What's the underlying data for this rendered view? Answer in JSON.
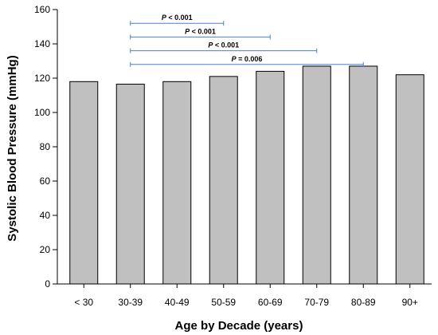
{
  "chart_data": {
    "type": "bar",
    "categories": [
      "< 30",
      "30-39",
      "40-49",
      "50-59",
      "60-69",
      "70-79",
      "80-89",
      "90+"
    ],
    "values": [
      118,
      116.5,
      118,
      121,
      124,
      127,
      127,
      122
    ],
    "xlabel": "Age by Decade (years)",
    "ylabel": "Systolic Blood Pressure (mmHg)",
    "ylim": [
      0,
      160
    ],
    "yticks": [
      0,
      20,
      40,
      60,
      80,
      100,
      120,
      140,
      160
    ],
    "grid": false,
    "colors": {
      "bar_fill": "#c0c0c0",
      "bar_stroke": "#000000",
      "annotation_line": "#4a7fd4"
    },
    "annotations": [
      {
        "from": "30-39",
        "to": "50-59",
        "p_symbol": "P",
        "relation": "< 0.001",
        "y": 152
      },
      {
        "from": "30-39",
        "to": "60-69",
        "p_symbol": "P",
        "relation": "< 0.001",
        "y": 144
      },
      {
        "from": "30-39",
        "to": "70-79",
        "p_symbol": "P",
        "relation": "< 0.001",
        "y": 136
      },
      {
        "from": "30-39",
        "to": "80-89",
        "p_symbol": "P",
        "relation": "= 0.006",
        "y": 128
      }
    ]
  }
}
